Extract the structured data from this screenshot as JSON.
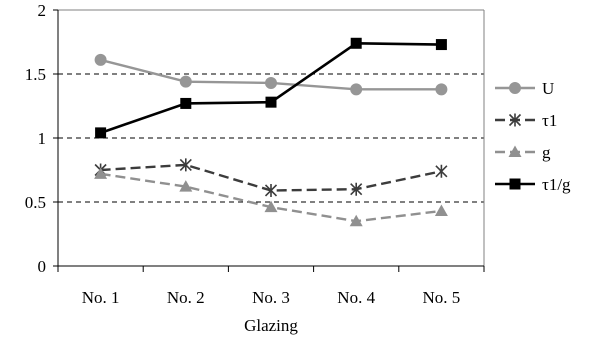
{
  "chart_data": {
    "type": "line",
    "categories": [
      "No. 1",
      "No. 2",
      "No. 3",
      "No. 4",
      "No. 5"
    ],
    "xlabel": "Glazing",
    "ylabel": "",
    "ylim": [
      0,
      2
    ],
    "yticks": [
      "0",
      "0.5",
      "1",
      "1.5",
      "2"
    ],
    "grid": "horizontal dashed",
    "legend": "right",
    "series": [
      {
        "name": "U",
        "values": [
          1.61,
          1.44,
          1.43,
          1.38,
          1.38
        ],
        "color": "#969696",
        "dash": "solid",
        "marker": "circle"
      },
      {
        "name": "τ1",
        "values": [
          0.75,
          0.79,
          0.59,
          0.6,
          0.74
        ],
        "color": "#3c3c3c",
        "dash": "dashed",
        "marker": "asterisk"
      },
      {
        "name": "g",
        "values": [
          0.72,
          0.62,
          0.46,
          0.35,
          0.43
        ],
        "color": "#909090",
        "dash": "dashed",
        "marker": "triangle"
      },
      {
        "name": "τ1/g",
        "values": [
          1.04,
          1.27,
          1.28,
          1.74,
          1.73
        ],
        "color": "#000000",
        "dash": "solid",
        "marker": "square"
      }
    ]
  }
}
